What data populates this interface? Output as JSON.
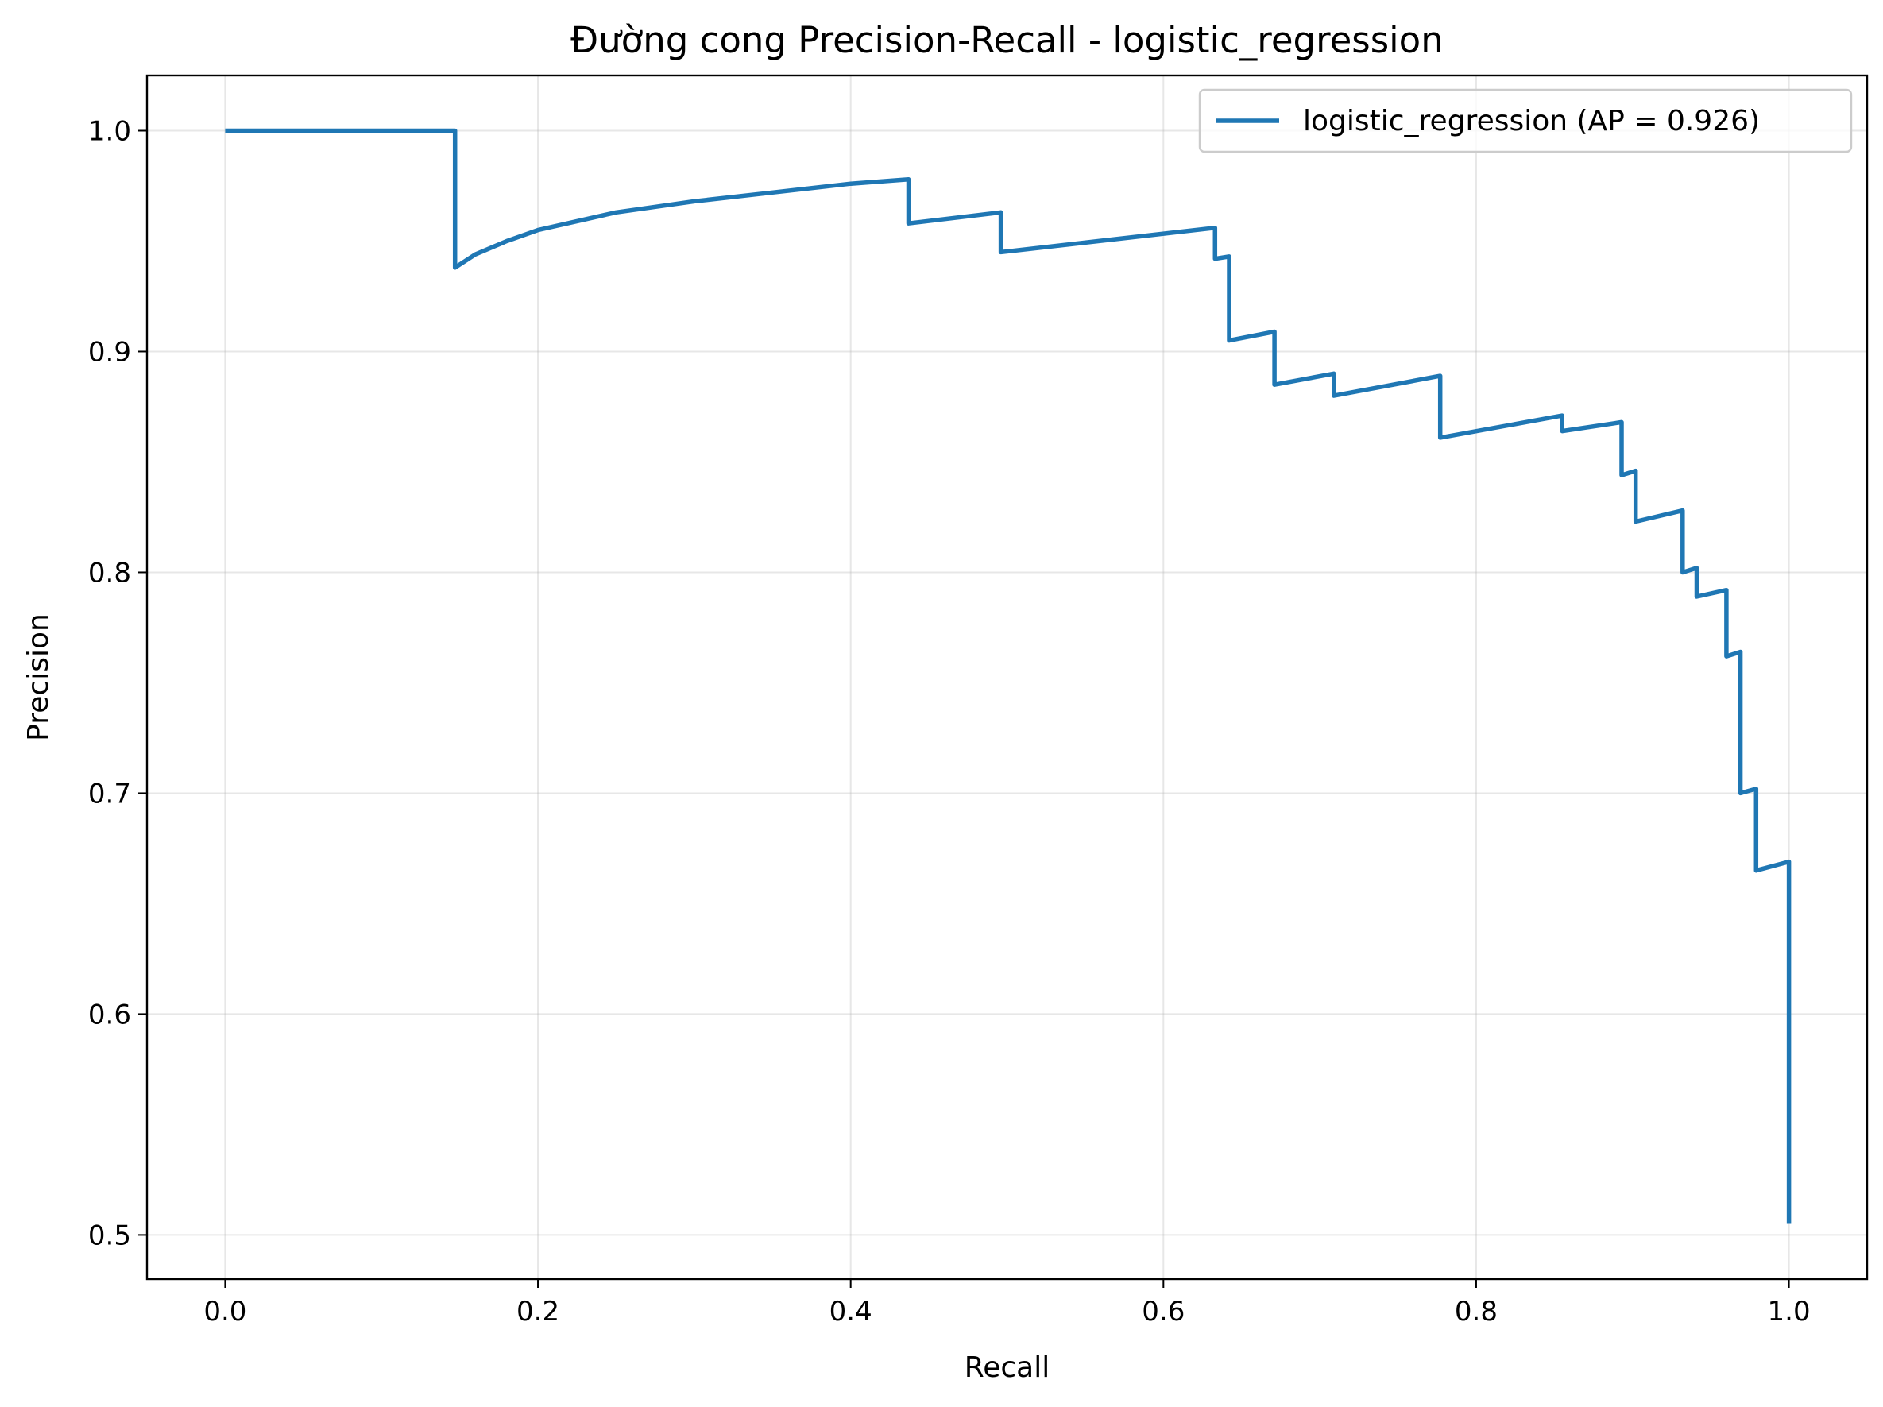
{
  "chart_data": {
    "type": "line",
    "title": "Đường cong Precision-Recall - logistic_regression",
    "xlabel": "Recall",
    "ylabel": "Precision",
    "xlim": [
      -0.05,
      1.05
    ],
    "ylim": [
      0.48,
      1.025
    ],
    "xticks": [
      0.0,
      0.2,
      0.4,
      0.6,
      0.8,
      1.0
    ],
    "xtick_labels": [
      "0.0",
      "0.2",
      "0.4",
      "0.6",
      "0.8",
      "1.0"
    ],
    "yticks": [
      0.5,
      0.6,
      0.7,
      0.8,
      0.9,
      1.0
    ],
    "ytick_labels": [
      "0.5",
      "0.6",
      "0.7",
      "0.8",
      "0.9",
      "1.0"
    ],
    "grid": true,
    "legend_position": "top-right",
    "series": [
      {
        "name": "logistic_regression (AP = 0.926)",
        "color": "#1f77b4",
        "points": [
          [
            0.0,
            1.0
          ],
          [
            0.147,
            1.0
          ],
          [
            0.147,
            0.938
          ],
          [
            0.16,
            0.944
          ],
          [
            0.18,
            0.95
          ],
          [
            0.2,
            0.955
          ],
          [
            0.25,
            0.963
          ],
          [
            0.3,
            0.968
          ],
          [
            0.35,
            0.972
          ],
          [
            0.4,
            0.976
          ],
          [
            0.437,
            0.978
          ],
          [
            0.437,
            0.958
          ],
          [
            0.496,
            0.963
          ],
          [
            0.496,
            0.945
          ],
          [
            0.633,
            0.956
          ],
          [
            0.633,
            0.942
          ],
          [
            0.642,
            0.943
          ],
          [
            0.642,
            0.905
          ],
          [
            0.671,
            0.909
          ],
          [
            0.671,
            0.885
          ],
          [
            0.709,
            0.89
          ],
          [
            0.709,
            0.88
          ],
          [
            0.777,
            0.889
          ],
          [
            0.777,
            0.861
          ],
          [
            0.855,
            0.871
          ],
          [
            0.855,
            0.864
          ],
          [
            0.893,
            0.868
          ],
          [
            0.893,
            0.844
          ],
          [
            0.902,
            0.846
          ],
          [
            0.902,
            0.823
          ],
          [
            0.932,
            0.828
          ],
          [
            0.932,
            0.8
          ],
          [
            0.941,
            0.802
          ],
          [
            0.941,
            0.789
          ],
          [
            0.96,
            0.792
          ],
          [
            0.96,
            0.762
          ],
          [
            0.969,
            0.764
          ],
          [
            0.969,
            0.7
          ],
          [
            0.979,
            0.702
          ],
          [
            0.979,
            0.665
          ],
          [
            1.0,
            0.669
          ],
          [
            1.0,
            0.505
          ]
        ]
      }
    ]
  }
}
